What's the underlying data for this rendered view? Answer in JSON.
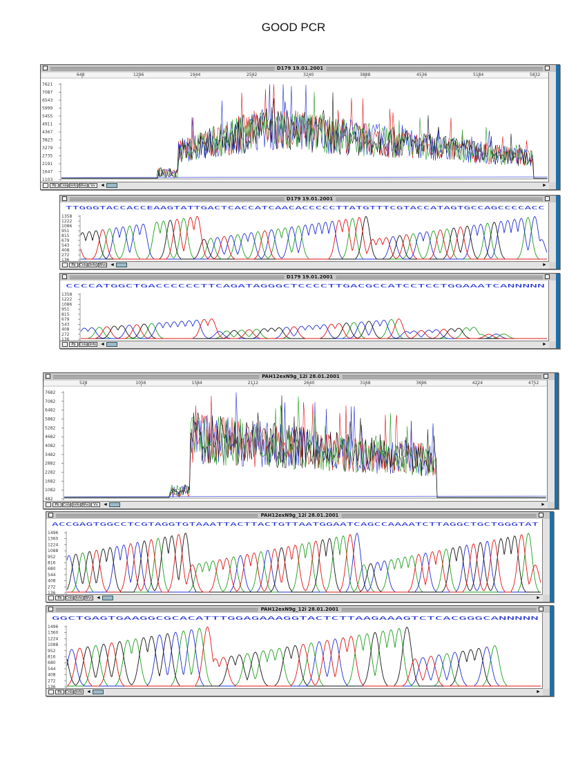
{
  "page": {
    "title": "GOOD PCR"
  },
  "colors": {
    "A": "#1a9e1a",
    "C": "#1c2bd4",
    "G": "#111111",
    "T": "#e01010",
    "window_edge": "#1f6fa8"
  },
  "icons": [
    "close-box-icon",
    "zoom-box-icon",
    "scroll-left-arrow-icon",
    "scroll-right-arrow-icon"
  ],
  "windows": [
    {
      "id": "w1",
      "title": "D179 19.01.2001",
      "type": "overview",
      "x_ticks": [
        "648",
        "1296",
        "1944",
        "2592",
        "3240",
        "3888",
        "4536",
        "5184",
        "5832"
      ],
      "y_ticks": [
        "7621",
        "7087",
        "6543",
        "5999",
        "5455",
        "4911",
        "4367",
        "3823",
        "3279",
        "2735",
        "2191",
        "1647",
        "1103"
      ],
      "scroll_controls": [
        "Pb",
        "Cnls",
        "Info",
        "Wvc",
        "Vv"
      ]
    },
    {
      "id": "w2",
      "title": "D179 19.01.2001",
      "type": "trace",
      "sequence": "TTGGGTACCACCEAAGTATTGACTCACCATCAACACCCCCTTATGTTTCGTACCATAGTGCCAGCCCCACC",
      "y_ticks": [
        "1358",
        "1222",
        "1086",
        "951",
        "815",
        "679",
        "543",
        "408",
        "272",
        "136"
      ],
      "scroll_controls": [
        "Pb",
        "Cnls",
        "Info",
        "Wvc"
      ]
    },
    {
      "id": "w3",
      "title": "D179 19.01.2001",
      "type": "trace",
      "sequence": "CCCCATGGCTGACCCCCCTTCAGATAGGGCTCCCCTTGACGCCATCCTCCTGGAAATCANNNNN",
      "y_ticks": [
        "1358",
        "1222",
        "1086",
        "951",
        "815",
        "679",
        "543",
        "408",
        "272",
        "136"
      ],
      "scroll_controls": [
        "Pb",
        "Cnls",
        "Info"
      ]
    },
    {
      "id": "w4",
      "title": "PAH12exN9g_12i 28.01.2001",
      "type": "overview",
      "x_ticks": [
        "528",
        "1056",
        "1584",
        "2112",
        "2640",
        "3168",
        "3696",
        "4224",
        "4752"
      ],
      "y_ticks": [
        "7682",
        "7082",
        "6482",
        "5882",
        "5282",
        "4682",
        "4082",
        "3482",
        "2882",
        "2282",
        "1682",
        "1082",
        "482"
      ],
      "scroll_controls": [
        "Pb",
        "Cnls",
        "Info",
        "Wvc",
        "Vv"
      ]
    },
    {
      "id": "w5",
      "title": "PAH12exN9g_12i 28.01.2001",
      "type": "trace",
      "sequence": "ACCGAGTGGCCTCGTAGGTGTAAATTACTTACTGTTAATGGAATCAGCCAAAATCTTAGGCTGCTGGGTAT",
      "y_ticks": [
        "1496",
        "1360",
        "1224",
        "1088",
        "952",
        "816",
        "680",
        "544",
        "408",
        "272",
        "136"
      ],
      "scroll_controls": [
        "Pb",
        "Cnls",
        "Info",
        "Wvc"
      ]
    },
    {
      "id": "w6",
      "title": "PAH12exN9g_12i 28.01.2001",
      "type": "trace",
      "sequence": "GGCTGAGTGAAGGCGCACATTTGGAGAAAGGTACTCTTAAGAAAGTCTCACGGGCANNNNN",
      "y_ticks": [
        "1496",
        "1360",
        "1224",
        "1088",
        "952",
        "816",
        "680",
        "544",
        "408",
        "272",
        "136"
      ],
      "scroll_controls": [
        "Pb",
        "Cnls",
        "Info"
      ]
    }
  ]
}
